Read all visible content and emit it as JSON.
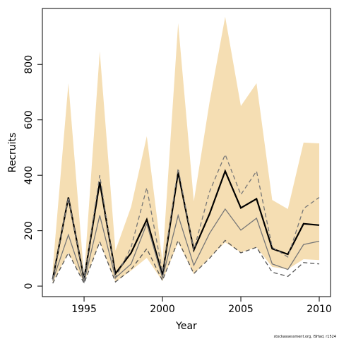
{
  "chart_data": {
    "type": "line",
    "xlabel": "Year",
    "ylabel": "Recruits",
    "footnote": "stockassessment.org, ISHad, r1524",
    "x": [
      1993,
      1994,
      1995,
      1996,
      1997,
      1998,
      1999,
      2000,
      2001,
      2002,
      2003,
      2004,
      2005,
      2006,
      2007,
      2008,
      2009,
      2010
    ],
    "band": {
      "color": "#f5deb3",
      "upper": [
        64,
        732,
        38,
        847,
        128,
        286,
        541,
        89,
        949,
        306,
        663,
        972,
        650,
        732,
        311,
        278,
        518,
        515
      ],
      "lower": [
        13,
        120,
        13,
        158,
        15,
        56,
        102,
        18,
        158,
        43,
        102,
        158,
        122,
        140,
        69,
        61,
        97,
        94
      ]
    },
    "series": [
      {
        "color": "#000000",
        "width": 2.2,
        "dash": false,
        "values": [
          25,
          320,
          25,
          375,
          45,
          120,
          240,
          40,
          410,
          130,
          260,
          415,
          282,
          315,
          135,
          115,
          225,
          220
        ]
      },
      {
        "color": "#777777",
        "width": 1.3,
        "dash": false,
        "values": [
          20,
          185,
          15,
          255,
          30,
          80,
          225,
          30,
          255,
          75,
          190,
          278,
          202,
          245,
          80,
          60,
          150,
          162
        ]
      },
      {
        "color": "#777777",
        "width": 1.3,
        "dash": true,
        "values": [
          25,
          320,
          25,
          400,
          30,
          140,
          355,
          50,
          425,
          130,
          340,
          475,
          330,
          415,
          140,
          105,
          280,
          320
        ]
      },
      {
        "color": "#555555",
        "width": 1.3,
        "dash": true,
        "values": [
          10,
          120,
          10,
          160,
          15,
          60,
          135,
          20,
          165,
          45,
          100,
          165,
          120,
          140,
          50,
          35,
          85,
          80
        ]
      }
    ],
    "xlim": [
      1992.34,
      2010.72
    ],
    "ylim": [
      -38,
      1002
    ],
    "xticks": [
      1995,
      2000,
      2005,
      2010
    ],
    "yticks": [
      0,
      200,
      400,
      600,
      800
    ]
  }
}
